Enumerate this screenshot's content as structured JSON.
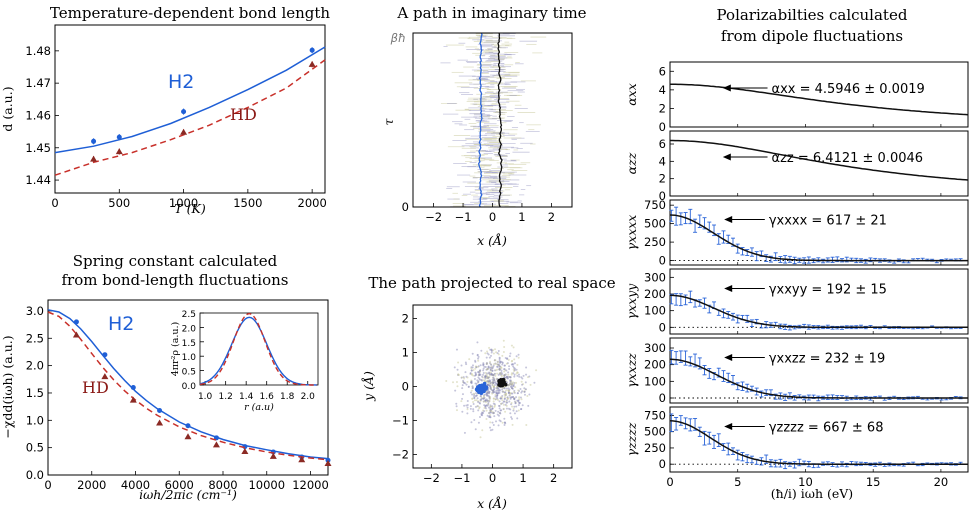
{
  "chart_data": [
    {
      "id": "bond",
      "type": "line",
      "title": "Temperature-dependent bond length",
      "xlabel": "T (K)",
      "ylabel": "d (a.u.)",
      "xlim": [
        0,
        2100
      ],
      "ylim": [
        1.436,
        1.488
      ],
      "xticks": [
        "0",
        "500",
        "1000",
        "1500",
        "2000"
      ],
      "yticks": [
        "1.44",
        "1.45",
        "1.46",
        "1.47",
        "1.48"
      ],
      "annotations": [
        "H2",
        "HD"
      ],
      "series": [
        {
          "name": "H2",
          "color": "#1f5fd6",
          "style": "solid",
          "curve_x": [
            0,
            300,
            600,
            900,
            1200,
            1500,
            1800,
            2100
          ],
          "curve_y": [
            1.4485,
            1.4505,
            1.4535,
            1.4575,
            1.4625,
            1.468,
            1.474,
            1.4812
          ],
          "points_x": [
            300,
            500,
            1000,
            2000
          ],
          "points_y": [
            1.452,
            1.4533,
            1.4612,
            1.4802
          ]
        },
        {
          "name": "HD",
          "color": "#c8302a",
          "style": "dashed",
          "curve_x": [
            0,
            300,
            600,
            900,
            1200,
            1500,
            1800,
            2100
          ],
          "curve_y": [
            1.4415,
            1.4455,
            1.4485,
            1.4525,
            1.457,
            1.4625,
            1.4685,
            1.4772
          ],
          "points_x": [
            300,
            500,
            1000,
            2000
          ],
          "points_y": [
            1.4465,
            1.4488,
            1.4548,
            1.4758
          ]
        }
      ]
    },
    {
      "id": "spring",
      "type": "line",
      "title": [
        "Spring constant calculated",
        "from bond-length fluctuations"
      ],
      "xlabel": "iωh/2πic (cm⁻¹)",
      "ylabel": "−χdd(iωh) (a.u.)",
      "xlim": [
        0,
        12800
      ],
      "ylim": [
        0,
        3.2
      ],
      "xticks": [
        "0",
        "2000",
        "4000",
        "6000",
        "8000",
        "10000",
        "12000"
      ],
      "yticks": [
        "0.0",
        "0.5",
        "1.0",
        "1.5",
        "2.0",
        "2.5",
        "3.0"
      ],
      "annotations": [
        "H2",
        "HD"
      ],
      "series": [
        {
          "name": "H2",
          "color": "#1f5fd6",
          "style": "solid",
          "curve_x": [
            0,
            500,
            1000,
            1500,
            2000,
            2500,
            3000,
            3500,
            4000,
            4500,
            5000,
            6000,
            7000,
            8000,
            9000,
            10000,
            11000,
            12000,
            12800
          ],
          "curve_y": [
            3.02,
            2.98,
            2.86,
            2.67,
            2.44,
            2.19,
            1.95,
            1.73,
            1.53,
            1.36,
            1.21,
            0.97,
            0.79,
            0.65,
            0.54,
            0.46,
            0.39,
            0.33,
            0.3
          ],
          "points_x": [
            1300,
            2600,
            3900,
            5100,
            6400,
            7700,
            9000,
            10300,
            11600,
            12800
          ],
          "points_y": [
            2.8,
            2.2,
            1.6,
            1.18,
            0.9,
            0.68,
            0.52,
            0.42,
            0.33,
            0.27
          ]
        },
        {
          "name": "HD",
          "color": "#c8302a",
          "style": "dashed",
          "curve_x": [
            0,
            500,
            1000,
            1500,
            2000,
            2500,
            3000,
            3500,
            4000,
            4500,
            5000,
            6000,
            7000,
            8000,
            9000,
            10000,
            11000,
            12000,
            12800
          ],
          "curve_y": [
            2.98,
            2.9,
            2.72,
            2.48,
            2.22,
            1.97,
            1.74,
            1.54,
            1.37,
            1.22,
            1.09,
            0.88,
            0.72,
            0.6,
            0.5,
            0.42,
            0.36,
            0.31,
            0.28
          ],
          "points_x": [
            1300,
            2600,
            3900,
            5100,
            6400,
            7700,
            9000,
            10300,
            11600,
            12800
          ],
          "points_y": [
            2.56,
            1.8,
            1.37,
            0.95,
            0.7,
            0.55,
            0.43,
            0.34,
            0.28,
            0.21
          ]
        }
      ],
      "inset": {
        "xlabel": "r (a.u)",
        "ylabel": "4πr²ρ (a.u.)",
        "xlim": [
          0.95,
          2.1
        ],
        "ylim": [
          0,
          2.5
        ],
        "xticks": [
          "1.0",
          "1.2",
          "1.4",
          "1.6",
          "1.8",
          "2.0"
        ],
        "yticks": [
          "0.0",
          "0.5",
          "1.0",
          "1.5",
          "2.0",
          "2.5"
        ],
        "series": [
          {
            "name": "H2",
            "color": "#1f5fd6",
            "style": "solid",
            "center": 1.43,
            "sigma": 0.17,
            "peak": 2.35
          },
          {
            "name": "HD",
            "color": "#c8302a",
            "style": "dashed",
            "center": 1.43,
            "sigma": 0.155,
            "peak": 2.48
          }
        ]
      }
    },
    {
      "id": "imagtime",
      "type": "line",
      "title": "A path in imaginary time",
      "xlabel": "x (Å)",
      "ylabel": "τ",
      "ytop_label": "βħ",
      "xlim": [
        -2.7,
        2.7
      ],
      "ylim": [
        0,
        1
      ],
      "xticks": [
        "−2",
        "−1",
        "0",
        "1",
        "2"
      ],
      "yticks": [
        "0"
      ],
      "series": [
        {
          "name": "blue path",
          "color": "#2a64d8",
          "mean_x": -0.4
        },
        {
          "name": "black path",
          "color": "#111111",
          "mean_x": 0.25
        }
      ]
    },
    {
      "id": "realspace",
      "type": "scatter",
      "title": "The path projected to real space",
      "xlabel": "x (Å)",
      "ylabel": "y (Å)",
      "xlim": [
        -2.6,
        2.6
      ],
      "ylim": [
        -2.4,
        2.4
      ],
      "xticks": [
        "−2",
        "−1",
        "0",
        "1",
        "2"
      ],
      "yticks": [
        "−2",
        "−1",
        "0",
        "1",
        "2"
      ],
      "clusters": [
        {
          "name": "blue",
          "color": "#2a64d8",
          "center": [
            -0.35,
            -0.05
          ]
        },
        {
          "name": "black",
          "color": "#111111",
          "center": [
            0.3,
            0.1
          ]
        }
      ]
    },
    {
      "id": "polar",
      "type": "line",
      "title": [
        "Polarizabilties calculated",
        "from dipole fluctuations"
      ],
      "xlabel": "(ħ/i) iωh (eV)",
      "xlim": [
        0,
        22
      ],
      "xticks": [
        "0",
        "5",
        "10",
        "15",
        "20"
      ],
      "panels": [
        {
          "ylabel": "αxx",
          "ylim": [
            0,
            7
          ],
          "yticks": [
            "0",
            "2",
            "4",
            "6"
          ],
          "label": "αxx = 4.5946 ± 0.0019",
          "kind": "smooth",
          "a0": 4.6,
          "w": 14
        },
        {
          "ylabel": "αzz",
          "ylim": [
            0,
            7.5
          ],
          "yticks": [
            "0",
            "2",
            "4",
            "6"
          ],
          "label": "αzz = 6.4121 ± 0.0046",
          "kind": "smooth",
          "a0": 6.4,
          "w": 14
        },
        {
          "ylabel": "γxxxx",
          "ylim": [
            -60,
            820
          ],
          "yticks": [
            "0",
            "250",
            "500",
            "750"
          ],
          "label": "γxxxx = 617 ± 21",
          "kind": "noisy",
          "a0": 617,
          "w": 3.2
        },
        {
          "ylabel": "γxxyy",
          "ylim": [
            -40,
            350
          ],
          "yticks": [
            "0",
            "100",
            "200",
            "300"
          ],
          "label": "γxxyy = 192 ± 15",
          "kind": "noisy",
          "a0": 192,
          "w": 3.2
        },
        {
          "ylabel": "γxxzz",
          "ylim": [
            -30,
            360
          ],
          "yticks": [
            "0",
            "100",
            "200",
            "300"
          ],
          "label": "γxxzz = 232 ± 19",
          "kind": "noisy",
          "a0": 232,
          "w": 3.4
        },
        {
          "ylabel": "γzzzz",
          "ylim": [
            -120,
            880
          ],
          "yticks": [
            "0",
            "250",
            "500",
            "750"
          ],
          "label": "γzzzz = 667 ± 68",
          "kind": "noisy",
          "a0": 667,
          "w": 3.0
        }
      ]
    }
  ],
  "colors": {
    "blue": "#1f5fd6",
    "red": "#c8302a",
    "black": "#111111",
    "cloud": "#8c8cb8"
  }
}
